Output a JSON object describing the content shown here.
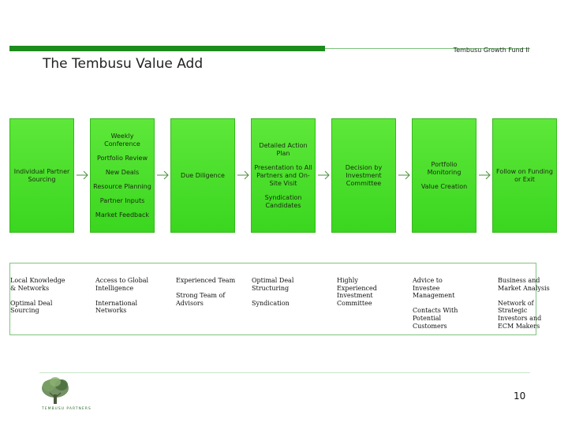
{
  "header": {
    "fund_label": "Tembusu Growth Fund II",
    "title": "The Tembusu Value Add"
  },
  "process_steps": [
    {
      "lines": [
        "Individual Partner Sourcing"
      ]
    },
    {
      "lines": [
        "Weekly Conference",
        "Portfolio Review",
        "New Deals",
        "Resource Planning",
        "Partner Inputs",
        "Market Feedback"
      ]
    },
    {
      "lines": [
        "Due Diligence"
      ]
    },
    {
      "lines": [
        "Detailed Action Plan",
        "Presentation to All Partners and On-Site Visit",
        "Syndication Candidates"
      ]
    },
    {
      "lines": [
        "Decision by Investment Committee"
      ]
    },
    {
      "lines": [
        "Portfolio Monitoring",
        "Value Creation"
      ]
    },
    {
      "lines": [
        "Follow on Funding or Exit"
      ]
    }
  ],
  "value_adds": [
    {
      "items": [
        "Local Knowledge\n& Networks",
        "Optimal Deal\nSourcing"
      ]
    },
    {
      "items": [
        "Access to Global\nIntelligence",
        "International\nNetworks"
      ]
    },
    {
      "items": [
        "Experienced Team",
        "Strong Team of\nAdvisors"
      ]
    },
    {
      "items": [
        "Optimal Deal\nStructuring",
        "Syndication"
      ]
    },
    {
      "items": [
        "Highly\nExperienced\nInvestment\nCommittee"
      ]
    },
    {
      "items": [
        "Advice to\nInvestee\nManagement",
        "Contacts With\nPotential\nCustomers"
      ]
    },
    {
      "items": [
        "Business and\nMarket Analysis",
        "Network of\nStrategic\nInvestors and\nECM Makers"
      ]
    }
  ],
  "footer": {
    "logo_text": "TEMBUSU PARTNERS",
    "page_number": "10"
  },
  "colors": {
    "step_fill": "#4ade2a",
    "accent_green": "#1d8c1d"
  },
  "icons": {
    "arrow": "right-arrow-icon",
    "logo": "tree-logo-icon"
  }
}
